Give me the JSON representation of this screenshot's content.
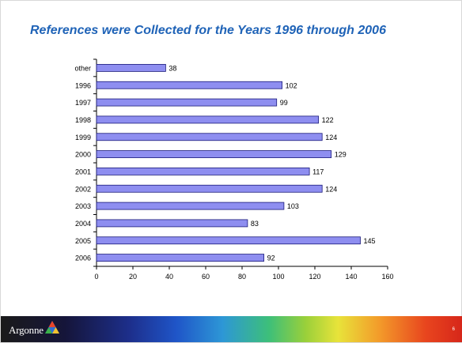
{
  "slide": {
    "title": "References were Collected for the Years 1996 through 2006",
    "page_number": "6"
  },
  "footer": {
    "logo_text": "Argonne"
  },
  "colors": {
    "title": "#1f63b7",
    "bar_fill": "#8e8ef0",
    "bar_stroke": "#1a1a7a"
  },
  "chart_data": {
    "type": "bar",
    "orientation": "horizontal",
    "categories": [
      "other",
      "1996",
      "1997",
      "1998",
      "1999",
      "2000",
      "2001",
      "2002",
      "2003",
      "2004",
      "2005",
      "2006"
    ],
    "values": [
      38,
      102,
      99,
      122,
      124,
      129,
      117,
      124,
      103,
      83,
      145,
      92
    ],
    "data_labels": [
      "38",
      "102",
      "99",
      "122",
      "124",
      "129",
      "117",
      "124",
      "103",
      "83",
      "145",
      "92"
    ],
    "xlim": [
      0,
      160
    ],
    "x_ticks": [
      "0",
      "20",
      "40",
      "60",
      "80",
      "100",
      "120",
      "140",
      "160"
    ],
    "grid": false,
    "legend": "none"
  }
}
